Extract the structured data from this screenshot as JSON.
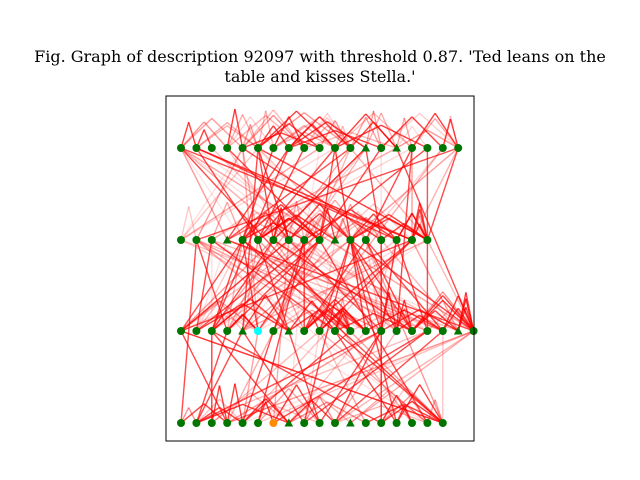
{
  "title_lines": [
    "Fig. Graph of description 92097 with threshold 0.87. 'Ted leans on the",
    "table and kisses Stella.'"
  ],
  "colors": {
    "node_default": "#007500",
    "node_highlight_cyan": "#00ffff",
    "node_highlight_orange": "#ff8c00",
    "edge": "#ff0000",
    "frame": "#000000"
  },
  "chart_data": {
    "type": "network-graph",
    "title": "Fig. Graph of description 92097 with threshold 0.87. 'Ted leans on the table and kisses Stella.'",
    "threshold": 0.87,
    "layers": [
      {
        "index": 0,
        "nodes": [
          "circle",
          "circle",
          "circle",
          "circle",
          "circle",
          "circle",
          "circle",
          "circle",
          "circle",
          "circle",
          "circle",
          "circle",
          "triangle",
          "circle",
          "triangle",
          "circle",
          "circle",
          "circle",
          "circle"
        ],
        "highlight": []
      },
      {
        "index": 1,
        "nodes": [
          "circle",
          "circle",
          "circle",
          "triangle",
          "circle",
          "circle",
          "circle",
          "circle",
          "circle",
          "circle",
          "triangle",
          "circle",
          "circle",
          "circle",
          "circle",
          "circle",
          "circle"
        ],
        "highlight": []
      },
      {
        "index": 2,
        "nodes": [
          "circle",
          "circle",
          "circle",
          "circle",
          "triangle",
          "circle",
          "circle",
          "triangle",
          "circle",
          "circle",
          "circle",
          "circle",
          "circle",
          "circle",
          "circle",
          "circle",
          "circle",
          "circle",
          "triangle",
          "circle"
        ],
        "highlight": [
          {
            "node": 5,
            "color": "cyan"
          }
        ]
      },
      {
        "index": 3,
        "nodes": [
          "circle",
          "circle",
          "circle",
          "circle",
          "circle",
          "circle",
          "circle",
          "triangle",
          "circle",
          "circle",
          "circle",
          "triangle",
          "circle",
          "circle",
          "circle",
          "circle",
          "circle",
          "circle"
        ],
        "highlight": [
          {
            "node": 6,
            "color": "orange"
          }
        ]
      }
    ]
  }
}
